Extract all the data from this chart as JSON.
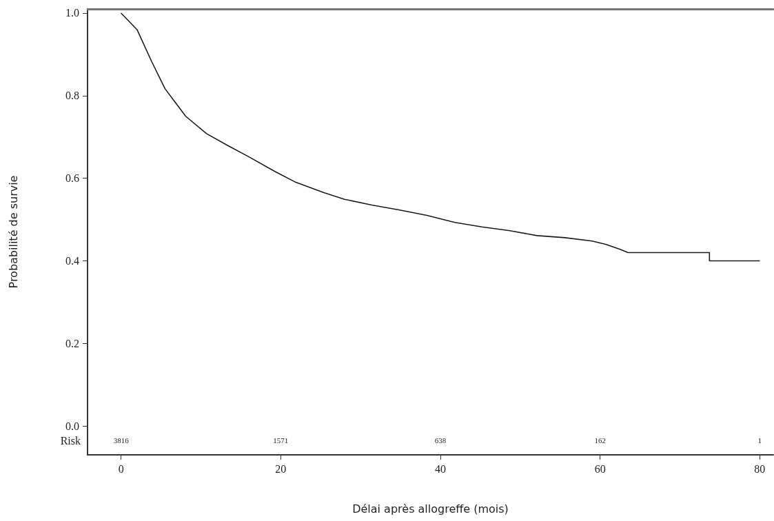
{
  "chart_data": {
    "type": "line",
    "xlabel": "Délai après allogreffe (mois)",
    "ylabel": "Probabilité de survie",
    "xlim": [
      -4.2,
      81.7
    ],
    "ylim": [
      -0.07,
      1.01
    ],
    "xticks": [
      0,
      20,
      40,
      60,
      80
    ],
    "yticks": [
      {
        "value": 0,
        "label": "0.0"
      },
      0.2,
      0.4,
      0.6,
      0.8,
      {
        "value": 1,
        "label": "1.0"
      }
    ],
    "grid": false,
    "marker": "none",
    "line_style": "solid",
    "series": [
      {
        "color": "#1a1a1a",
        "x": [
          0,
          2,
          3.8,
          5.5,
          8.1,
          10.7,
          13.3,
          15.9,
          19.3,
          21.9,
          25.4,
          28,
          31.4,
          34.9,
          38.3,
          41.8,
          45.2,
          48.7,
          52.1,
          55.6,
          59,
          60.7,
          62.5,
          63.5,
          73.7,
          73.7,
          80
        ],
        "values": [
          1,
          0.96,
          0.884,
          0.817,
          0.75,
          0.708,
          0.68,
          0.653,
          0.616,
          0.59,
          0.565,
          0.549,
          0.535,
          0.523,
          0.51,
          0.493,
          0.482,
          0.473,
          0.461,
          0.456,
          0.448,
          0.44,
          0.428,
          0.42,
          0.42,
          0.4,
          0.4
        ]
      }
    ],
    "annotations": [
      "Risk",
      "3816",
      "1571",
      "638",
      "162",
      "1"
    ]
  }
}
